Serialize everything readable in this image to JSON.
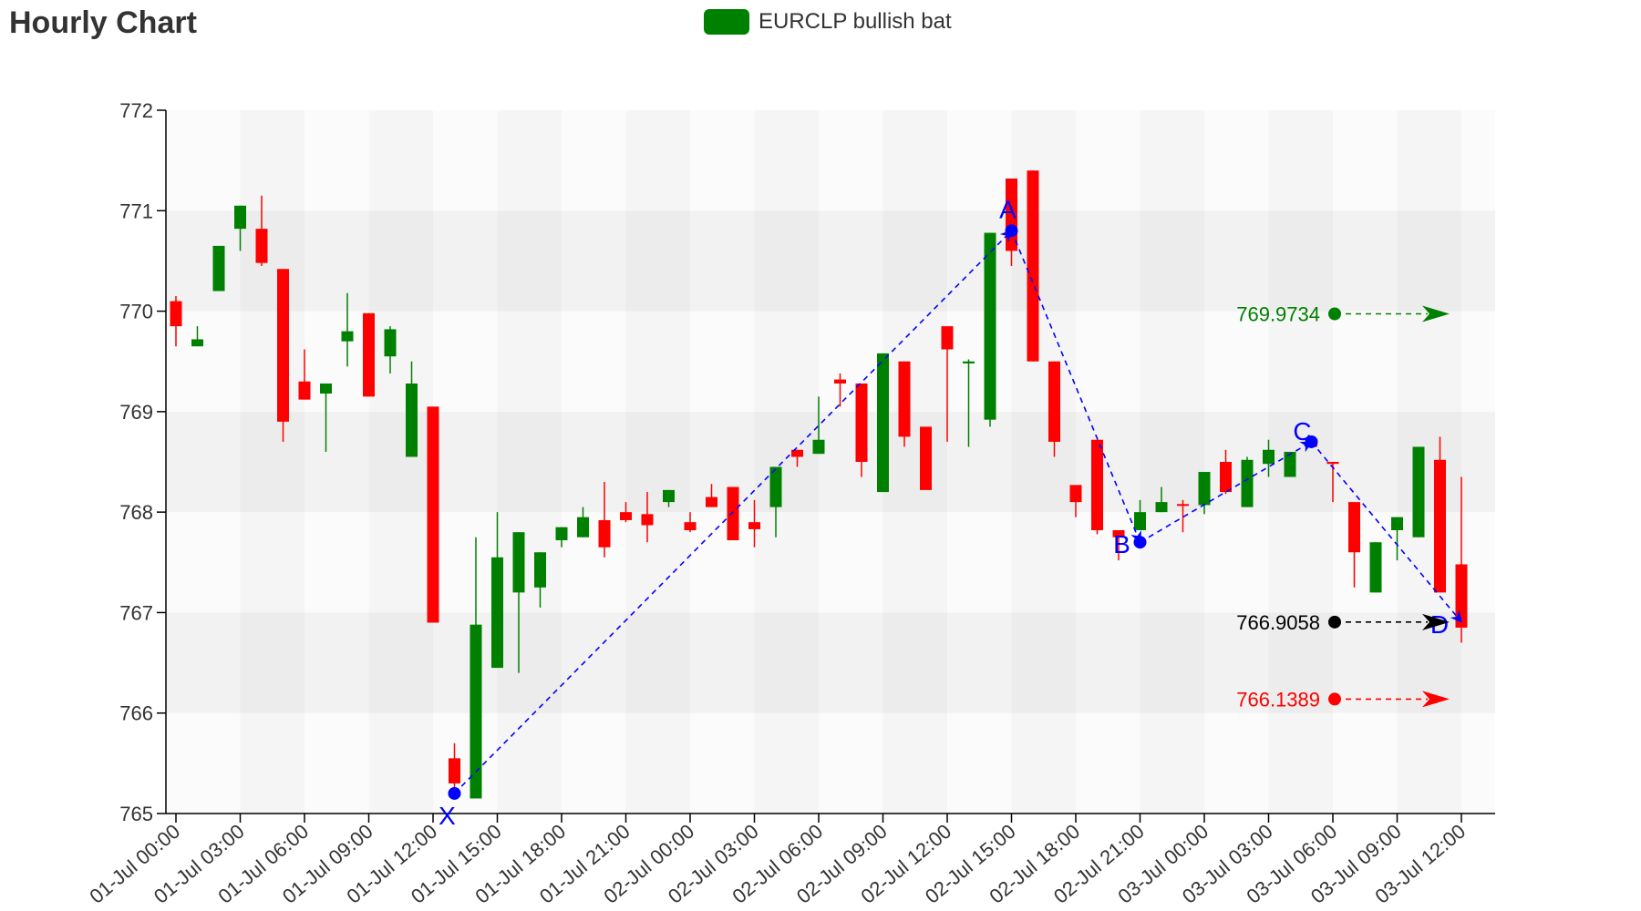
{
  "title": "Hourly Chart",
  "legend": {
    "label": "EURCLP bullish bat",
    "color": "#008000"
  },
  "chart_data": {
    "type": "candlestick",
    "title": "Hourly Chart",
    "xlabel": "",
    "ylabel": "",
    "ylim": [
      765,
      772
    ],
    "yticks": [
      765,
      766,
      767,
      768,
      769,
      770,
      771,
      772
    ],
    "xticks": [
      "01-Jul 00:00",
      "01-Jul 03:00",
      "01-Jul 06:00",
      "01-Jul 09:00",
      "01-Jul 12:00",
      "01-Jul 15:00",
      "01-Jul 18:00",
      "01-Jul 21:00",
      "02-Jul 00:00",
      "02-Jul 03:00",
      "02-Jul 06:00",
      "02-Jul 09:00",
      "02-Jul 12:00",
      "02-Jul 15:00",
      "02-Jul 18:00",
      "02-Jul 21:00",
      "03-Jul 00:00",
      "03-Jul 03:00",
      "03-Jul 06:00",
      "03-Jul 09:00",
      "03-Jul 12:00"
    ],
    "colors": {
      "up": "#008000",
      "down": "#ff0000",
      "pattern": "#0000ff"
    },
    "candles": [
      {
        "t": "01-Jul 00:00",
        "o": 770.1,
        "h": 770.15,
        "l": 769.65,
        "c": 769.85
      },
      {
        "t": "01-Jul 01:00",
        "o": 769.65,
        "h": 769.85,
        "l": 769.65,
        "c": 769.72
      },
      {
        "t": "01-Jul 02:00",
        "o": 770.2,
        "h": 770.65,
        "l": 770.2,
        "c": 770.65
      },
      {
        "t": "01-Jul 03:00",
        "o": 770.82,
        "h": 771.05,
        "l": 770.6,
        "c": 771.05
      },
      {
        "t": "01-Jul 04:00",
        "o": 770.82,
        "h": 771.15,
        "l": 770.45,
        "c": 770.48
      },
      {
        "t": "01-Jul 05:00",
        "o": 770.42,
        "h": 770.42,
        "l": 768.7,
        "c": 768.9
      },
      {
        "t": "01-Jul 06:00",
        "o": 769.3,
        "h": 769.62,
        "l": 769.12,
        "c": 769.12
      },
      {
        "t": "01-Jul 07:00",
        "o": 769.18,
        "h": 769.28,
        "l": 768.6,
        "c": 769.28
      },
      {
        "t": "01-Jul 08:00",
        "o": 769.7,
        "h": 770.18,
        "l": 769.45,
        "c": 769.8
      },
      {
        "t": "01-Jul 09:00",
        "o": 769.98,
        "h": 769.98,
        "l": 769.15,
        "c": 769.15
      },
      {
        "t": "01-Jul 10:00",
        "o": 769.55,
        "h": 769.85,
        "l": 769.38,
        "c": 769.82
      },
      {
        "t": "01-Jul 11:00",
        "o": 768.55,
        "h": 769.5,
        "l": 768.55,
        "c": 769.28
      },
      {
        "t": "01-Jul 12:00",
        "o": 769.05,
        "h": 769.05,
        "l": 766.9,
        "c": 766.9
      },
      {
        "t": "01-Jul 13:00",
        "o": 765.55,
        "h": 765.7,
        "l": 765.2,
        "c": 765.3
      },
      {
        "t": "01-Jul 14:00",
        "o": 765.15,
        "h": 767.75,
        "l": 765.15,
        "c": 766.88
      },
      {
        "t": "01-Jul 15:00",
        "o": 766.45,
        "h": 768.0,
        "l": 766.45,
        "c": 767.55
      },
      {
        "t": "01-Jul 16:00",
        "o": 767.2,
        "h": 767.8,
        "l": 766.4,
        "c": 767.8
      },
      {
        "t": "01-Jul 17:00",
        "o": 767.25,
        "h": 767.6,
        "l": 767.05,
        "c": 767.6
      },
      {
        "t": "01-Jul 18:00",
        "o": 767.72,
        "h": 767.85,
        "l": 767.65,
        "c": 767.85
      },
      {
        "t": "01-Jul 19:00",
        "o": 767.75,
        "h": 768.05,
        "l": 767.75,
        "c": 767.95
      },
      {
        "t": "01-Jul 20:00",
        "o": 767.92,
        "h": 768.3,
        "l": 767.55,
        "c": 767.65
      },
      {
        "t": "01-Jul 21:00",
        "o": 768.0,
        "h": 768.1,
        "l": 767.9,
        "c": 767.92
      },
      {
        "t": "01-Jul 22:00",
        "o": 767.98,
        "h": 768.2,
        "l": 767.7,
        "c": 767.87
      },
      {
        "t": "01-Jul 23:00",
        "o": 768.1,
        "h": 768.22,
        "l": 768.05,
        "c": 768.22
      },
      {
        "t": "02-Jul 00:00",
        "o": 767.9,
        "h": 768.0,
        "l": 767.8,
        "c": 767.82
      },
      {
        "t": "02-Jul 01:00",
        "o": 768.15,
        "h": 768.28,
        "l": 768.05,
        "c": 768.05
      },
      {
        "t": "02-Jul 02:00",
        "o": 768.25,
        "h": 768.25,
        "l": 767.72,
        "c": 767.72
      },
      {
        "t": "02-Jul 03:00",
        "o": 767.9,
        "h": 768.12,
        "l": 767.65,
        "c": 767.83
      },
      {
        "t": "02-Jul 04:00",
        "o": 768.05,
        "h": 768.45,
        "l": 767.75,
        "c": 768.45
      },
      {
        "t": "02-Jul 05:00",
        "o": 768.62,
        "h": 768.62,
        "l": 768.45,
        "c": 768.55
      },
      {
        "t": "02-Jul 06:00",
        "o": 768.58,
        "h": 769.15,
        "l": 768.58,
        "c": 768.72
      },
      {
        "t": "02-Jul 07:00",
        "o": 769.32,
        "h": 769.38,
        "l": 769.05,
        "c": 769.28
      },
      {
        "t": "02-Jul 08:00",
        "o": 769.28,
        "h": 769.28,
        "l": 768.35,
        "c": 768.5
      },
      {
        "t": "02-Jul 09:00",
        "o": 768.2,
        "h": 769.58,
        "l": 768.2,
        "c": 769.58
      },
      {
        "t": "02-Jul 10:00",
        "o": 769.5,
        "h": 769.5,
        "l": 768.65,
        "c": 768.75
      },
      {
        "t": "02-Jul 11:00",
        "o": 768.85,
        "h": 768.85,
        "l": 768.22,
        "c": 768.22
      },
      {
        "t": "02-Jul 12:00",
        "o": 769.85,
        "h": 769.85,
        "l": 768.7,
        "c": 769.62
      },
      {
        "t": "02-Jul 13:00",
        "o": 769.48,
        "h": 769.52,
        "l": 768.65,
        "c": 769.5
      },
      {
        "t": "02-Jul 14:00",
        "o": 768.92,
        "h": 770.78,
        "l": 768.85,
        "c": 770.78
      },
      {
        "t": "02-Jul 15:00",
        "o": 771.32,
        "h": 771.32,
        "l": 770.45,
        "c": 770.6
      },
      {
        "t": "02-Jul 16:00",
        "o": 771.4,
        "h": 771.4,
        "l": 769.5,
        "c": 769.5
      },
      {
        "t": "02-Jul 17:00",
        "o": 769.5,
        "h": 769.5,
        "l": 768.55,
        "c": 768.7
      },
      {
        "t": "02-Jul 18:00",
        "o": 768.27,
        "h": 768.27,
        "l": 767.95,
        "c": 768.1
      },
      {
        "t": "02-Jul 19:00",
        "o": 768.72,
        "h": 768.72,
        "l": 767.78,
        "c": 767.82
      },
      {
        "t": "02-Jul 20:00",
        "o": 767.82,
        "h": 767.82,
        "l": 767.52,
        "c": 767.75
      },
      {
        "t": "02-Jul 21:00",
        "o": 767.82,
        "h": 768.12,
        "l": 767.82,
        "c": 768.0
      },
      {
        "t": "02-Jul 22:00",
        "o": 768.0,
        "h": 768.25,
        "l": 768.0,
        "c": 768.1
      },
      {
        "t": "02-Jul 23:00",
        "o": 768.08,
        "h": 768.12,
        "l": 767.8,
        "c": 768.07
      },
      {
        "t": "03-Jul 00:00",
        "o": 768.07,
        "h": 768.4,
        "l": 767.98,
        "c": 768.4
      },
      {
        "t": "03-Jul 01:00",
        "o": 768.5,
        "h": 768.62,
        "l": 768.18,
        "c": 768.2
      },
      {
        "t": "03-Jul 02:00",
        "o": 768.05,
        "h": 768.55,
        "l": 768.05,
        "c": 768.52
      },
      {
        "t": "03-Jul 03:00",
        "o": 768.48,
        "h": 768.72,
        "l": 768.35,
        "c": 768.62
      },
      {
        "t": "03-Jul 04:00",
        "o": 768.35,
        "h": 768.6,
        "l": 768.35,
        "c": 768.6
      },
      {
        "t": "03-Jul 05:00",
        "o": 768.72,
        "h": 768.72,
        "l": 768.65,
        "c": 768.65
      },
      {
        "t": "03-Jul 06:00",
        "o": 768.5,
        "h": 768.5,
        "l": 768.1,
        "c": 768.48
      },
      {
        "t": "03-Jul 07:00",
        "o": 768.1,
        "h": 768.1,
        "l": 767.25,
        "c": 767.6
      },
      {
        "t": "03-Jul 08:00",
        "o": 767.2,
        "h": 767.7,
        "l": 767.2,
        "c": 767.7
      },
      {
        "t": "03-Jul 09:00",
        "o": 767.82,
        "h": 767.95,
        "l": 767.52,
        "c": 767.95
      },
      {
        "t": "03-Jul 10:00",
        "o": 767.75,
        "h": 768.65,
        "l": 767.75,
        "c": 768.65
      },
      {
        "t": "03-Jul 11:00",
        "o": 768.52,
        "h": 768.75,
        "l": 767.2,
        "c": 767.2
      },
      {
        "t": "03-Jul 12:00",
        "o": 767.48,
        "h": 768.35,
        "l": 766.7,
        "c": 766.85
      }
    ],
    "pattern": {
      "name": "EURCLP bullish bat",
      "points": [
        {
          "label": "X",
          "t": "01-Jul 13:00",
          "price": 765.2
        },
        {
          "label": "A",
          "t": "02-Jul 15:00",
          "price": 770.8
        },
        {
          "label": "B",
          "t": "02-Jul 21:00",
          "price": 767.7
        },
        {
          "label": "C",
          "t": "03-Jul 05:00",
          "price": 768.7
        },
        {
          "label": "D",
          "t": "03-Jul 12:00",
          "price": 766.9058
        }
      ]
    },
    "levels": [
      {
        "label": "769.9734",
        "value": 769.9734,
        "color": "#008000"
      },
      {
        "label": "766.9058",
        "value": 766.9058,
        "color": "#000000"
      },
      {
        "label": "766.1389",
        "value": 766.1389,
        "color": "#ff0000"
      }
    ]
  }
}
